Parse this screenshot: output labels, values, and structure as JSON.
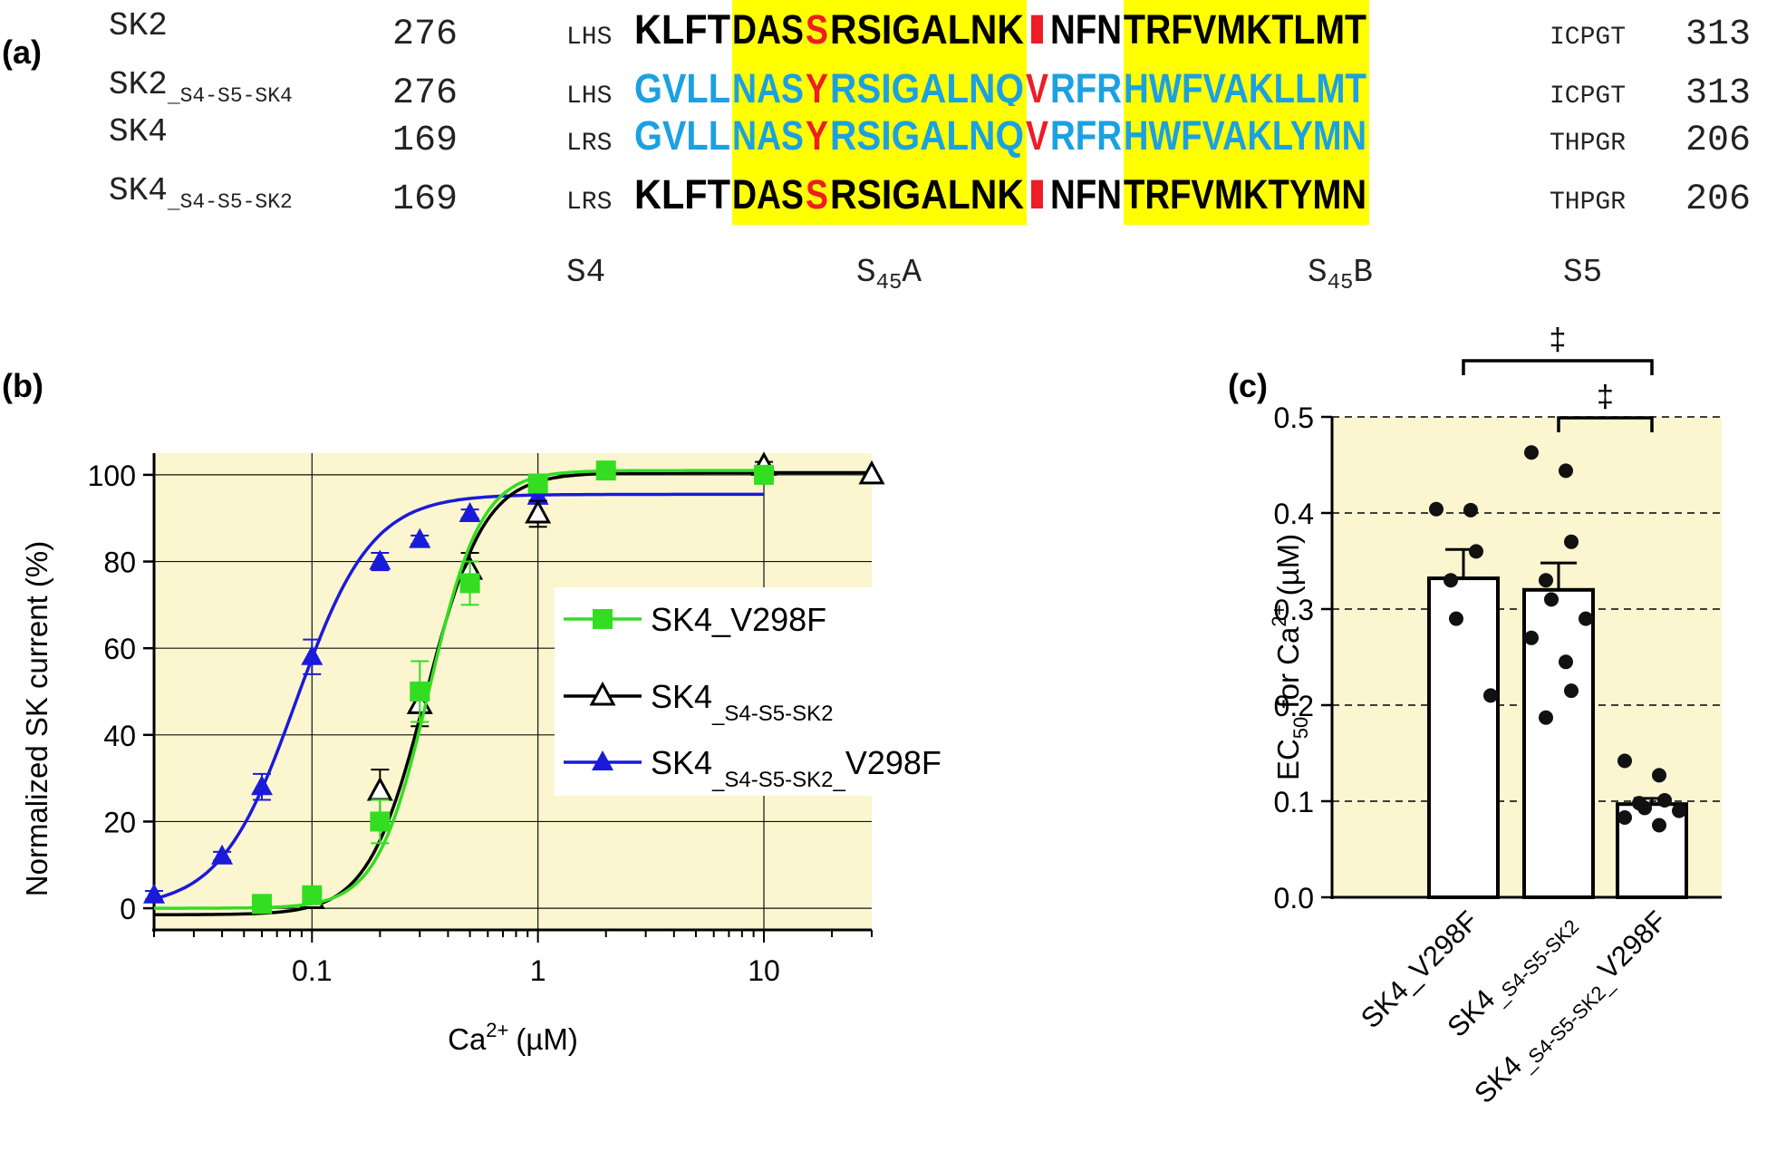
{
  "figure": {
    "panels": [
      "(a)",
      "(b)",
      "(c)"
    ]
  },
  "alignment": {
    "rows": [
      {
        "name": "SK2",
        "name_sub": "",
        "start": "276",
        "left": "LHS",
        "right": "ICPGT",
        "end": "313",
        "segments": [
          {
            "t": "KLFT",
            "c": "black",
            "hl": false
          },
          {
            "t": "DAS",
            "c": "black",
            "hl": true
          },
          {
            "t": "S",
            "c": "red",
            "hl": true
          },
          {
            "t": "RSIGALNK",
            "c": "black",
            "hl": true
          },
          {
            "t": "I",
            "c": "red",
            "hl": false
          },
          {
            "t": "NFN",
            "c": "black",
            "hl": false
          },
          {
            "t": "TRFVMKTLMT",
            "c": "black",
            "hl": true
          }
        ]
      },
      {
        "name": "SK2",
        "name_sub": "_S4-S5-SK4",
        "start": "276",
        "left": "LHS",
        "right": "ICPGT",
        "end": "313",
        "segments": [
          {
            "t": "GVLL",
            "c": "blue",
            "hl": false
          },
          {
            "t": "NAS",
            "c": "blue",
            "hl": true
          },
          {
            "t": "Y",
            "c": "red",
            "hl": true
          },
          {
            "t": "RSIGALNQ",
            "c": "blue",
            "hl": true
          },
          {
            "t": "V",
            "c": "red",
            "hl": false
          },
          {
            "t": "RFR",
            "c": "blue",
            "hl": false
          },
          {
            "t": "HWFVAKLLMT",
            "c": "blue",
            "hl": true
          }
        ]
      },
      {
        "name": "SK4",
        "name_sub": "",
        "start": "169",
        "left": "LRS",
        "right": "THPGR",
        "end": "206",
        "segments": [
          {
            "t": "GVLL",
            "c": "blue",
            "hl": false
          },
          {
            "t": "NAS",
            "c": "blue",
            "hl": true
          },
          {
            "t": "Y",
            "c": "red",
            "hl": true
          },
          {
            "t": "RSIGALNQ",
            "c": "blue",
            "hl": true
          },
          {
            "t": "V",
            "c": "red",
            "hl": false
          },
          {
            "t": "RFR",
            "c": "blue",
            "hl": false
          },
          {
            "t": "HWFVAKLYMN",
            "c": "blue",
            "hl": true
          }
        ]
      },
      {
        "name": "SK4",
        "name_sub": "_S4-S5-SK2",
        "start": "169",
        "left": "LRS",
        "right": "THPGR",
        "end": "206",
        "segments": [
          {
            "t": "KLFT",
            "c": "black",
            "hl": false
          },
          {
            "t": "DAS",
            "c": "black",
            "hl": true
          },
          {
            "t": "S",
            "c": "red",
            "hl": true
          },
          {
            "t": "RSIGALNK",
            "c": "black",
            "hl": true
          },
          {
            "t": "I",
            "c": "red",
            "hl": false
          },
          {
            "t": "NFN",
            "c": "black",
            "hl": false
          },
          {
            "t": "TRFVMKTYMN",
            "c": "black",
            "hl": true
          }
        ]
      }
    ],
    "region_labels": [
      {
        "main": "S4",
        "sub": "",
        "tail": ""
      },
      {
        "main": "S",
        "sub": "45",
        "tail": "A"
      },
      {
        "main": "S",
        "sub": "45",
        "tail": "B"
      },
      {
        "main": "S5",
        "sub": "",
        "tail": ""
      }
    ],
    "colors": {
      "black": "#000000",
      "blue": "#1ba1e2",
      "red": "#ee1c25",
      "highlight": "#ffff00"
    }
  },
  "chart_data": [
    {
      "type": "line",
      "panel": "(b)",
      "xlabel": "Ca",
      "xlabel_sup": "2+",
      "xlabel_unit": "(µM)",
      "ylabel": "Normalized SK current (%)",
      "xscale": "log",
      "xlim": [
        0.02,
        30
      ],
      "ylim": [
        -5,
        105
      ],
      "xticks": [
        {
          "v": 0.1,
          "label": "0.1"
        },
        {
          "v": 1,
          "label": "1"
        },
        {
          "v": 10,
          "label": "10"
        }
      ],
      "yticks": [
        0,
        20,
        40,
        60,
        80,
        100
      ],
      "grid": true,
      "background": "#fbf6cf",
      "legend_position": "center-right",
      "series": [
        {
          "name": "SK4_V298F",
          "name_sub": "",
          "name_tail": "",
          "color": "#33dd22",
          "marker": "square-filled",
          "points": [
            {
              "x": 0.06,
              "y": 1,
              "err": 1
            },
            {
              "x": 0.1,
              "y": 3,
              "err": 2
            },
            {
              "x": 0.2,
              "y": 20,
              "err": 5
            },
            {
              "x": 0.3,
              "y": 50,
              "err": 7
            },
            {
              "x": 0.5,
              "y": 75,
              "err": 5
            },
            {
              "x": 1,
              "y": 98,
              "err": 2
            },
            {
              "x": 2,
              "y": 101,
              "err": 1
            },
            {
              "x": 10,
              "y": 100,
              "err": 1
            }
          ],
          "fit": {
            "bottom": 0,
            "top": 101,
            "ec50": 0.33,
            "hill": 3.8,
            "xmin": 0.02,
            "xmax": 10
          }
        },
        {
          "name": "SK4",
          "name_sub": "_S4-S5-SK2",
          "name_tail": "",
          "color": "#000000",
          "marker": "triangle-open",
          "points": [
            {
              "x": 0.1,
              "y": 2,
              "err": 1
            },
            {
              "x": 0.2,
              "y": 27,
              "err": 5
            },
            {
              "x": 0.3,
              "y": 47,
              "err": 5
            },
            {
              "x": 0.5,
              "y": 78,
              "err": 4
            },
            {
              "x": 1,
              "y": 91,
              "err": 3
            },
            {
              "x": 10,
              "y": 102,
              "err": 1
            },
            {
              "x": 30,
              "y": 100,
              "err": 0
            }
          ],
          "fit": {
            "bottom": -1.5,
            "top": 100.5,
            "ec50": 0.32,
            "hill": 3.4,
            "xmin": 0.02,
            "xmax": 30
          }
        },
        {
          "name": "SK4",
          "name_sub": "_S4-S5-SK2_",
          "name_tail": "V298F",
          "color": "#1a1adb",
          "marker": "triangle-filled",
          "points": [
            {
              "x": 0.02,
              "y": 3,
              "err": 1
            },
            {
              "x": 0.04,
              "y": 12,
              "err": 1
            },
            {
              "x": 0.06,
              "y": 28,
              "err": 3
            },
            {
              "x": 0.1,
              "y": 58,
              "err": 4
            },
            {
              "x": 0.2,
              "y": 80,
              "err": 2
            },
            {
              "x": 0.3,
              "y": 85,
              "err": 1
            },
            {
              "x": 0.5,
              "y": 91,
              "err": 1
            },
            {
              "x": 1,
              "y": 95,
              "err": 1
            }
          ],
          "fit": {
            "bottom": 0,
            "top": 95.5,
            "ec50": 0.085,
            "hill": 2.6,
            "xmin": 0.02,
            "xmax": 10
          }
        }
      ]
    },
    {
      "type": "bar",
      "panel": "(c)",
      "ylabel": "EC",
      "ylabel_sub": "50",
      "ylabel_mid": " for Ca",
      "ylabel_sup": "2+",
      "ylabel_unit": " (µM)",
      "ylim": [
        0,
        0.5
      ],
      "yticks": [
        "0.0",
        "0.1",
        "0.2",
        "0.3",
        "0.4",
        "0.5"
      ],
      "grid": "dashed-horizontal",
      "background": "#fbf6cf",
      "categories": [
        {
          "main": "SK4_V298F",
          "sub": "",
          "tail": ""
        },
        {
          "main": "SK4",
          "sub": "_S4-S5-SK2",
          "tail": ""
        },
        {
          "main": "SK4",
          "sub": "_S4-S5-SK2_",
          "tail": "V298F"
        }
      ],
      "values": [
        0.332,
        0.32,
        0.097
      ],
      "sem": [
        0.03,
        0.028,
        0.006
      ],
      "points": [
        [
          0.404,
          0.403,
          0.36,
          0.33,
          0.29,
          0.21
        ],
        [
          0.463,
          0.444,
          0.37,
          0.33,
          0.31,
          0.29,
          0.27,
          0.245,
          0.215,
          0.187
        ],
        [
          0.142,
          0.127,
          0.101,
          0.098,
          0.093,
          0.09,
          0.083,
          0.075
        ]
      ],
      "significance": [
        {
          "from": 0,
          "to": 2,
          "symbol": "‡"
        },
        {
          "from": 1,
          "to": 2,
          "symbol": "‡"
        }
      ]
    }
  ]
}
